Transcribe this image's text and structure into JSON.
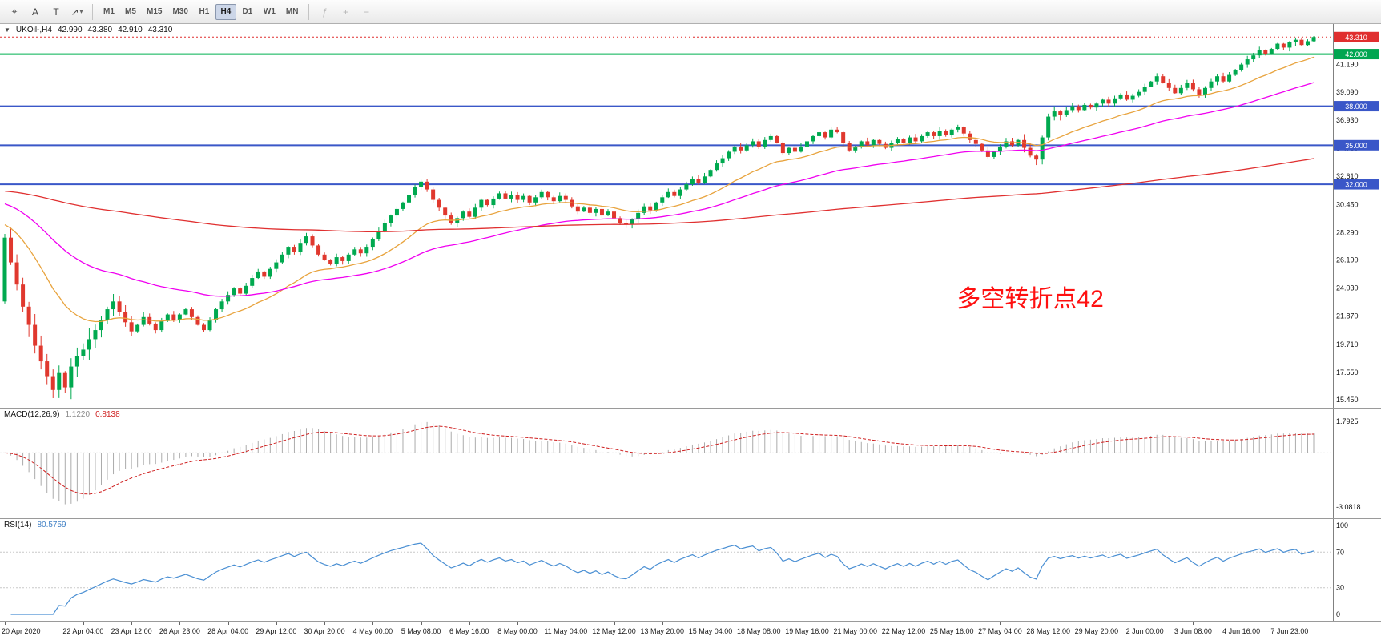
{
  "toolbar": {
    "tools": [
      {
        "name": "cursor-tool",
        "glyph": "⌖"
      },
      {
        "name": "text-tool",
        "glyph": "A"
      },
      {
        "name": "label-tool",
        "glyph": "T"
      },
      {
        "name": "arrow-tool",
        "glyph": "↗",
        "caret": true
      }
    ],
    "timeframes": [
      "M1",
      "M5",
      "M15",
      "M30",
      "H1",
      "H4",
      "D1",
      "W1",
      "MN"
    ],
    "active_timeframe": "H4",
    "right_tools": [
      {
        "name": "indicators",
        "glyph": "ƒ",
        "disabled": true
      },
      {
        "name": "zoom-in",
        "glyph": "+",
        "disabled": true
      },
      {
        "name": "zoom-out",
        "glyph": "−",
        "disabled": true
      }
    ]
  },
  "chart": {
    "collapse_icon": "▼",
    "symbol": "UKOil-,H4",
    "open": "42.990",
    "high": "43.380",
    "low": "42.910",
    "close": "43.310"
  },
  "annotation": {
    "text": "多空转折点42",
    "color": "#ff1010",
    "anchor_index": 170,
    "price": 22.6,
    "font_size": 30
  },
  "levels": [
    {
      "price": 42.0,
      "color": "#00b050",
      "width": 2,
      "badge": "42.000",
      "badge_bg": "#00a651"
    },
    {
      "price": 38.0,
      "color": "#3a57c8",
      "width": 2,
      "badge": "38.000",
      "badge_bg": "#3a57c8"
    },
    {
      "price": 35.0,
      "color": "#3a57c8",
      "width": 2,
      "badge": "35.000",
      "badge_bg": "#3a57c8"
    },
    {
      "price": 32.0,
      "color": "#3a57c8",
      "width": 2,
      "badge": "32.000",
      "badge_bg": "#3a57c8"
    }
  ],
  "price_scale": {
    "current": {
      "value": 43.31,
      "label": "43.310",
      "bg": "#e02f2f"
    },
    "ticks": [
      41.19,
      39.09,
      36.93,
      34.78,
      32.61,
      30.45,
      28.29,
      26.19,
      24.03,
      21.87,
      19.71,
      17.55,
      15.45
    ]
  },
  "macd": {
    "label": "MACD(12,26,9)",
    "value_main": "1.1220",
    "value_signal": "0.8138",
    "axis": [
      {
        "v": 1.7925,
        "label": "1.7925"
      },
      {
        "v": -3.0818,
        "label": "-3.0818"
      }
    ],
    "ylim": [
      -3.0818,
      1.7925
    ]
  },
  "rsi": {
    "label": "RSI(14)",
    "value": "80.5759",
    "axis": [
      100,
      70,
      30,
      0
    ],
    "levels": [
      70,
      30
    ],
    "ylim": [
      0,
      100
    ]
  },
  "moving_averages": [
    {
      "name": "ma-fast-orange",
      "color": "#e8a33d",
      "period": 20,
      "start": 29.0
    },
    {
      "name": "ma-mid-magenta",
      "color": "#f000f0",
      "period": 50,
      "start": 30.6
    },
    {
      "name": "ma-slow-red",
      "color": "#e03030",
      "period": 250,
      "start": 31.5
    }
  ],
  "colors": {
    "bull": "#00a94f",
    "bear": "#e0382e",
    "current_line": "#e02f2f",
    "macd_bar": "#ababab",
    "macd_signal": "#cf2020",
    "rsi_line": "#4a8fd3",
    "grid_dotted": "#c8c8c8",
    "axis_text": "#111111"
  },
  "chart_data": [
    {
      "type": "candlestick",
      "symbol": "UKOil-",
      "timeframe": "H4",
      "title_ohlc": [
        42.99,
        43.38,
        42.91,
        43.31
      ],
      "ylim": [
        15.45,
        43.45
      ],
      "hlines": [
        42.0,
        38.0,
        35.0,
        32.0
      ],
      "open_first": 23.0,
      "last_ohlc": [
        42.99,
        43.38,
        42.91,
        43.31
      ],
      "closes": [
        27.9,
        26.0,
        24.3,
        22.6,
        21.2,
        19.6,
        18.4,
        17.2,
        16.2,
        17.5,
        16.4,
        18.0,
        18.8,
        19.3,
        20.1,
        20.8,
        21.6,
        22.4,
        23.0,
        22.2,
        21.4,
        20.7,
        21.2,
        21.8,
        21.3,
        20.8,
        21.5,
        22.0,
        21.6,
        22.0,
        22.4,
        21.8,
        21.2,
        20.8,
        21.6,
        22.4,
        23.0,
        23.5,
        24.0,
        23.6,
        24.2,
        24.8,
        25.3,
        24.9,
        25.5,
        26.0,
        26.6,
        27.2,
        26.8,
        27.5,
        28.0,
        27.3,
        26.6,
        26.2,
        25.9,
        26.4,
        26.1,
        26.6,
        27.0,
        26.7,
        27.2,
        27.8,
        28.4,
        29.0,
        29.6,
        30.1,
        30.6,
        31.2,
        31.8,
        32.2,
        31.6,
        30.8,
        30.2,
        29.6,
        29.0,
        29.4,
        29.9,
        29.5,
        30.2,
        30.8,
        30.4,
        30.9,
        31.3,
        30.9,
        31.2,
        30.8,
        31.1,
        30.6,
        31.0,
        31.4,
        31.0,
        30.7,
        31.1,
        30.8,
        30.3,
        29.9,
        30.2,
        29.8,
        30.1,
        29.6,
        29.9,
        29.4,
        29.0,
        28.9,
        29.3,
        29.8,
        30.3,
        30.0,
        30.6,
        31.0,
        31.4,
        31.1,
        31.6,
        32.0,
        32.4,
        32.1,
        32.6,
        33.1,
        33.6,
        34.0,
        34.5,
        34.9,
        34.6,
        35.0,
        35.3,
        34.9,
        35.4,
        35.7,
        35.2,
        34.4,
        34.8,
        34.5,
        34.9,
        35.3,
        35.7,
        36.0,
        35.6,
        36.2,
        36.0,
        35.2,
        34.6,
        34.9,
        35.3,
        35.0,
        35.4,
        35.1,
        34.8,
        35.2,
        35.5,
        35.2,
        35.6,
        35.3,
        35.7,
        36.0,
        35.7,
        36.1,
        35.8,
        36.2,
        36.4,
        35.9,
        35.4,
        35.1,
        34.6,
        34.1,
        34.5,
        34.9,
        35.3,
        35.0,
        35.4,
        34.8,
        34.2,
        33.9,
        35.6,
        37.2,
        37.6,
        37.3,
        37.7,
        38.0,
        37.7,
        38.1,
        37.9,
        38.2,
        38.5,
        38.2,
        38.6,
        38.9,
        38.5,
        38.8,
        39.1,
        39.5,
        39.9,
        40.3,
        39.8,
        39.4,
        39.0,
        39.4,
        39.8,
        39.3,
        38.9,
        39.4,
        39.9,
        40.3,
        39.9,
        40.4,
        40.8,
        41.2,
        41.6,
        41.9,
        42.3,
        42.0,
        42.4,
        42.8,
        42.5,
        42.9,
        43.1,
        42.7,
        42.99,
        43.31
      ],
      "x_labels": [
        "20 Apr 2020",
        "22 Apr 04:00",
        "23 Apr 12:00",
        "26 Apr 23:00",
        "28 Apr 04:00",
        "29 Apr 12:00",
        "30 Apr 20:00",
        "4 May 00:00",
        "5 May 08:00",
        "6 May 16:00",
        "8 May 00:00",
        "11 May 04:00",
        "12 May 12:00",
        "13 May 20:00",
        "15 May 04:00",
        "18 May 08:00",
        "19 May 16:00",
        "21 May 00:00",
        "22 May 12:00",
        "25 May 16:00",
        "27 May 04:00",
        "28 May 12:00",
        "29 May 20:00",
        "2 Jun 00:00",
        "3 Jun 08:00",
        "4 Jun 16:00",
        "7 Jun 23:00"
      ],
      "x_label_indices": [
        0,
        13,
        21,
        29,
        37,
        45,
        53,
        61,
        69,
        77,
        85,
        93,
        101,
        109,
        117,
        125,
        133,
        141,
        149,
        157,
        165,
        173,
        181,
        189,
        197,
        205,
        213
      ]
    },
    {
      "type": "line",
      "name": "MACD(12,26,9)",
      "panel": "macd",
      "current_values": {
        "macd": 1.122,
        "signal": 0.8138
      },
      "axis_labels": [
        1.7925,
        -3.0818
      ]
    },
    {
      "type": "line",
      "name": "RSI(14)",
      "panel": "rsi",
      "current_value": 80.5759,
      "axis_labels": [
        100,
        70,
        30,
        0
      ],
      "levels": [
        70,
        30
      ]
    }
  ]
}
